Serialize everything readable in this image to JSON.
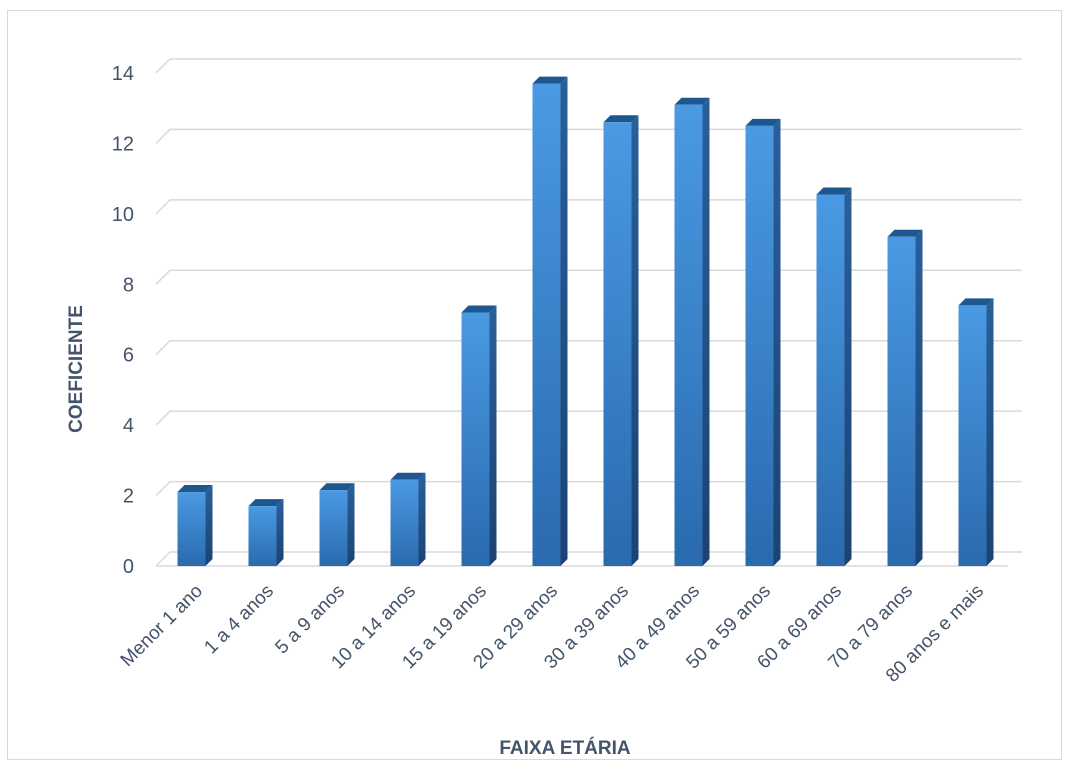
{
  "chart_data": {
    "type": "bar",
    "title": "",
    "xlabel": "FAIXA ETÁRIA",
    "ylabel": "COEFICIENTE",
    "categories": [
      "Menor 1 ano",
      "1 a 4 anos",
      "5 a 9 anos",
      "10 a 14 anos",
      "15 a 19 anos",
      "20 a 29 anos",
      "30 a 39 anos",
      "40 a 49 anos",
      "50 a 59 anos",
      "60 a 69 anos",
      "70 a 79 anos",
      "80 anos e mais"
    ],
    "values": [
      2.1,
      1.7,
      2.15,
      2.45,
      7.2,
      13.7,
      12.6,
      13.1,
      12.5,
      10.55,
      9.35,
      7.4
    ],
    "ylim": [
      0,
      14
    ],
    "yticks": [
      "0",
      "2",
      "4",
      "6",
      "8",
      "10",
      "12",
      "14"
    ],
    "grid": true,
    "legend": "none",
    "bar_style": "3d",
    "colors": {
      "bar_top": "#4a9ae3",
      "bar_bottom": "#2b6cb0",
      "bar_side": "#1f4f85",
      "bar_cap": "#1e5790"
    }
  }
}
